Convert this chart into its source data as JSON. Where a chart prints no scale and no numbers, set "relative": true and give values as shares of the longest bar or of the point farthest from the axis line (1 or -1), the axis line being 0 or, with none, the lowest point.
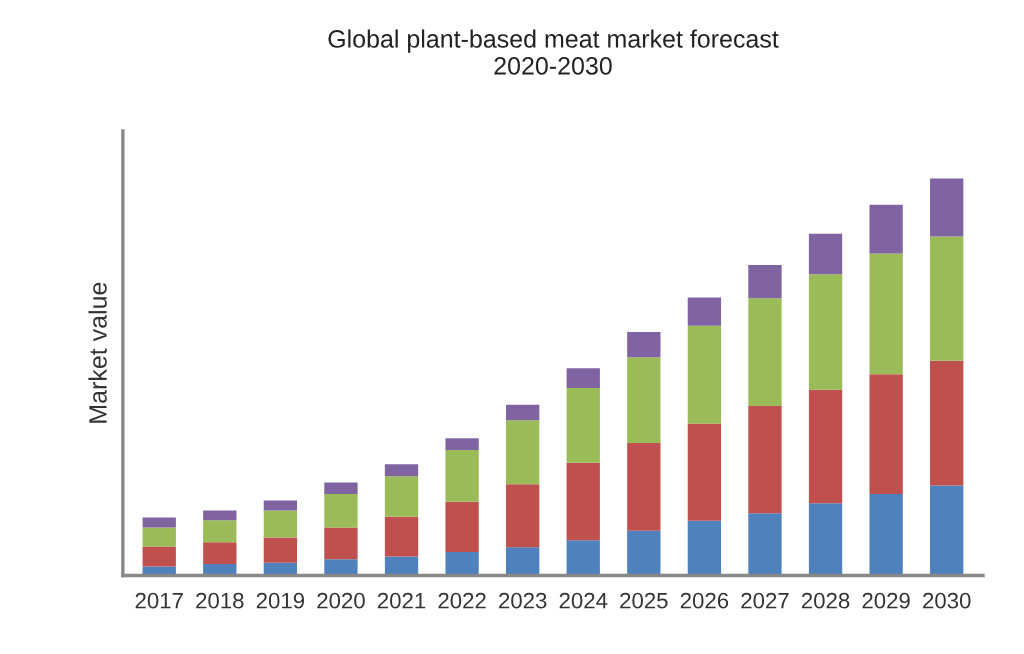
{
  "chart_data": {
    "type": "bar",
    "title": "Global plant-based meat market forecast\n2020-2030",
    "ylabel": "Market value",
    "relative": true,
    "stacked": true,
    "grid": false,
    "legend": false,
    "categories": [
      "2017",
      "2018",
      "2019",
      "2020",
      "2021",
      "2022",
      "2023",
      "2024",
      "2025",
      "2026",
      "2027",
      "2028",
      "2029",
      "2030"
    ],
    "series": [
      {
        "color": "#4f81bd",
        "values": [
          0.023,
          0.029,
          0.032,
          0.041,
          0.048,
          0.059,
          0.071,
          0.089,
          0.113,
          0.138,
          0.157,
          0.182,
          0.205,
          0.227
        ]
      },
      {
        "color": "#c0504d",
        "values": [
          0.05,
          0.055,
          0.064,
          0.08,
          0.1,
          0.127,
          0.159,
          0.195,
          0.221,
          0.245,
          0.27,
          0.286,
          0.302,
          0.314
        ]
      },
      {
        "color": "#9bbb59",
        "values": [
          0.048,
          0.055,
          0.068,
          0.084,
          0.102,
          0.13,
          0.161,
          0.188,
          0.216,
          0.246,
          0.271,
          0.291,
          0.304,
          0.313
        ]
      },
      {
        "color": "#8064a2",
        "values": [
          0.025,
          0.025,
          0.025,
          0.029,
          0.03,
          0.03,
          0.039,
          0.05,
          0.063,
          0.071,
          0.084,
          0.102,
          0.123,
          0.146
        ]
      }
    ]
  }
}
